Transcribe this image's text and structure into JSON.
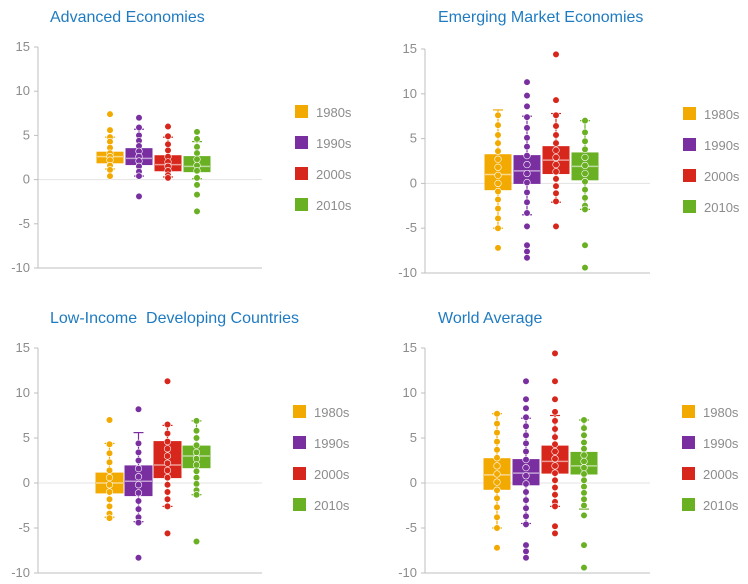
{
  "chart_data": [
    {
      "type": "box",
      "title": "Advanced Economies",
      "ylim": [
        -10,
        15
      ],
      "yticks": [
        -10,
        -5,
        0,
        5,
        10,
        15
      ],
      "grid": "horizontal",
      "legend": "right",
      "series": [
        {
          "name": "1980s",
          "color": "#f2a900",
          "q1": 1.9,
          "median": 2.6,
          "q3": 3.1,
          "whisker_low": 1.2,
          "whisker_high": 4.8,
          "points": [
            7.4,
            5.6,
            4.8,
            4.3,
            3.6,
            3.0,
            2.6,
            2.2,
            1.6,
            1.1,
            0.4
          ]
        },
        {
          "name": "1990s",
          "color": "#7a2fa1",
          "q1": 1.7,
          "median": 2.4,
          "q3": 3.5,
          "whisker_low": 0.4,
          "whisker_high": 5.7,
          "points": [
            7.0,
            5.9,
            5.0,
            4.4,
            3.8,
            3.2,
            2.6,
            2.1,
            1.5,
            0.9,
            0.4,
            -1.9
          ]
        },
        {
          "name": "2000s",
          "color": "#d7261b",
          "q1": 1.0,
          "median": 1.7,
          "q3": 2.7,
          "whisker_low": 0.3,
          "whisker_high": 4.8,
          "points": [
            6.0,
            4.9,
            4.0,
            3.3,
            2.6,
            2.0,
            1.5,
            1.0,
            0.5,
            0.2
          ]
        },
        {
          "name": "2010s",
          "color": "#6ab023",
          "q1": 0.9,
          "median": 1.5,
          "q3": 2.6,
          "whisker_low": 0.1,
          "whisker_high": 4.3,
          "points": [
            5.4,
            4.6,
            3.7,
            3.0,
            2.3,
            1.6,
            1.0,
            0.2,
            -0.6,
            -1.7,
            -3.6
          ]
        }
      ]
    },
    {
      "type": "box",
      "title": "Emerging Market Economies",
      "ylim": [
        -10,
        15
      ],
      "yticks": [
        -10,
        -5,
        0,
        5,
        10,
        15
      ],
      "grid": "horizontal",
      "legend": "right",
      "series": [
        {
          "name": "1980s",
          "color": "#f2a900",
          "q1": -0.7,
          "median": 1.0,
          "q3": 3.2,
          "whisker_low": -5.0,
          "whisker_high": 8.2,
          "points": [
            7.6,
            6.5,
            5.4,
            4.5,
            3.6,
            2.7,
            1.8,
            0.9,
            0.0,
            -0.9,
            -1.8,
            -2.8,
            -3.9,
            -5.0,
            -7.2
          ]
        },
        {
          "name": "1990s",
          "color": "#7a2fa1",
          "q1": 0.0,
          "median": 1.4,
          "q3": 3.1,
          "whisker_low": -3.5,
          "whisker_high": 7.5,
          "points": [
            11.3,
            9.8,
            8.6,
            7.4,
            6.2,
            5.1,
            4.1,
            3.1,
            2.1,
            1.1,
            0.1,
            -1.0,
            -2.1,
            -3.3,
            -4.8,
            -6.9,
            -7.6,
            -8.3
          ]
        },
        {
          "name": "2000s",
          "color": "#d7261b",
          "q1": 1.1,
          "median": 2.6,
          "q3": 4.1,
          "whisker_low": -2.1,
          "whisker_high": 7.8,
          "points": [
            14.4,
            9.3,
            7.6,
            6.4,
            5.4,
            4.5,
            3.7,
            2.9,
            2.1,
            1.3,
            0.5,
            -0.3,
            -1.1,
            -2.0,
            -4.8
          ]
        },
        {
          "name": "2010s",
          "color": "#6ab023",
          "q1": 0.4,
          "median": 1.9,
          "q3": 3.4,
          "whisker_low": -2.9,
          "whisker_high": 7.0,
          "points": [
            7.0,
            5.7,
            4.7,
            3.8,
            2.9,
            2.0,
            1.1,
            0.2,
            -0.7,
            -1.6,
            -2.5,
            -2.9,
            -6.9,
            -9.4
          ]
        }
      ]
    },
    {
      "type": "box",
      "title": "Low-Income  Developing Countries",
      "ylim": [
        -10,
        15
      ],
      "yticks": [
        -10,
        -5,
        0,
        5,
        10,
        15
      ],
      "grid": "horizontal",
      "legend": "right",
      "series": [
        {
          "name": "1980s",
          "color": "#f2a900",
          "q1": -1.1,
          "median": 0.0,
          "q3": 1.1,
          "whisker_low": -3.8,
          "whisker_high": 4.4,
          "points": [
            7.0,
            4.3,
            3.3,
            2.3,
            1.4,
            0.6,
            -0.2,
            -1.0,
            -1.8,
            -2.6,
            -3.4,
            -3.9
          ]
        },
        {
          "name": "1990s",
          "color": "#7a2fa1",
          "q1": -1.4,
          "median": 0.2,
          "q3": 1.9,
          "whisker_low": -4.3,
          "whisker_high": 5.6,
          "points": [
            8.2,
            4.4,
            3.4,
            2.5,
            1.6,
            0.7,
            -0.2,
            -1.1,
            -2.0,
            -2.9,
            -3.8,
            -4.4,
            -8.3
          ]
        },
        {
          "name": "2000s",
          "color": "#d7261b",
          "q1": 0.6,
          "median": 2.0,
          "q3": 4.6,
          "whisker_low": -2.6,
          "whisker_high": 6.4,
          "points": [
            11.3,
            6.5,
            5.5,
            4.6,
            3.8,
            3.0,
            2.2,
            1.4,
            0.6,
            -0.2,
            -1.0,
            -1.8,
            -2.6,
            -5.6
          ]
        },
        {
          "name": "2010s",
          "color": "#6ab023",
          "q1": 1.7,
          "median": 3.0,
          "q3": 4.1,
          "whisker_low": -1.3,
          "whisker_high": 6.9,
          "points": [
            6.9,
            5.8,
            5.0,
            4.2,
            3.4,
            2.7,
            2.0,
            1.3,
            0.6,
            -0.1,
            -0.8,
            -1.3,
            -6.5
          ]
        }
      ]
    },
    {
      "type": "box",
      "title": "World Average",
      "ylim": [
        -10,
        15
      ],
      "yticks": [
        -10,
        -5,
        0,
        5,
        10,
        15
      ],
      "grid": "horizontal",
      "legend": "right",
      "series": [
        {
          "name": "1980s",
          "color": "#f2a900",
          "q1": -0.7,
          "median": 0.9,
          "q3": 2.7,
          "whisker_low": -5.0,
          "whisker_high": 7.7,
          "points": [
            7.7,
            6.6,
            5.6,
            4.6,
            3.7,
            2.8,
            1.9,
            1.0,
            0.1,
            -0.8,
            -1.7,
            -2.7,
            -3.8,
            -5.0,
            -7.2
          ]
        },
        {
          "name": "1990s",
          "color": "#7a2fa1",
          "q1": -0.2,
          "median": 1.1,
          "q3": 2.6,
          "whisker_low": -4.5,
          "whisker_high": 7.2,
          "points": [
            11.3,
            9.3,
            8.3,
            7.3,
            6.3,
            5.3,
            4.4,
            3.5,
            2.6,
            1.7,
            0.8,
            -0.1,
            -1.0,
            -1.9,
            -2.8,
            -3.7,
            -4.6,
            -6.9,
            -7.6,
            -8.3
          ]
        },
        {
          "name": "2000s",
          "color": "#d7261b",
          "q1": 1.1,
          "median": 2.4,
          "q3": 4.1,
          "whisker_low": -2.6,
          "whisker_high": 7.5,
          "points": [
            14.4,
            11.3,
            9.3,
            7.9,
            6.9,
            6.0,
            5.1,
            4.3,
            3.5,
            2.7,
            1.9,
            1.1,
            0.3,
            -0.5,
            -1.3,
            -2.1,
            -2.6,
            -4.8,
            -5.6
          ]
        },
        {
          "name": "2010s",
          "color": "#6ab023",
          "q1": 1.0,
          "median": 1.9,
          "q3": 3.4,
          "whisker_low": -2.9,
          "whisker_high": 7.0,
          "points": [
            7.0,
            6.1,
            5.3,
            4.5,
            3.8,
            3.1,
            2.4,
            1.7,
            1.0,
            0.3,
            -0.4,
            -1.1,
            -1.8,
            -2.5,
            -3.6,
            -6.9,
            -9.4
          ]
        }
      ]
    }
  ]
}
